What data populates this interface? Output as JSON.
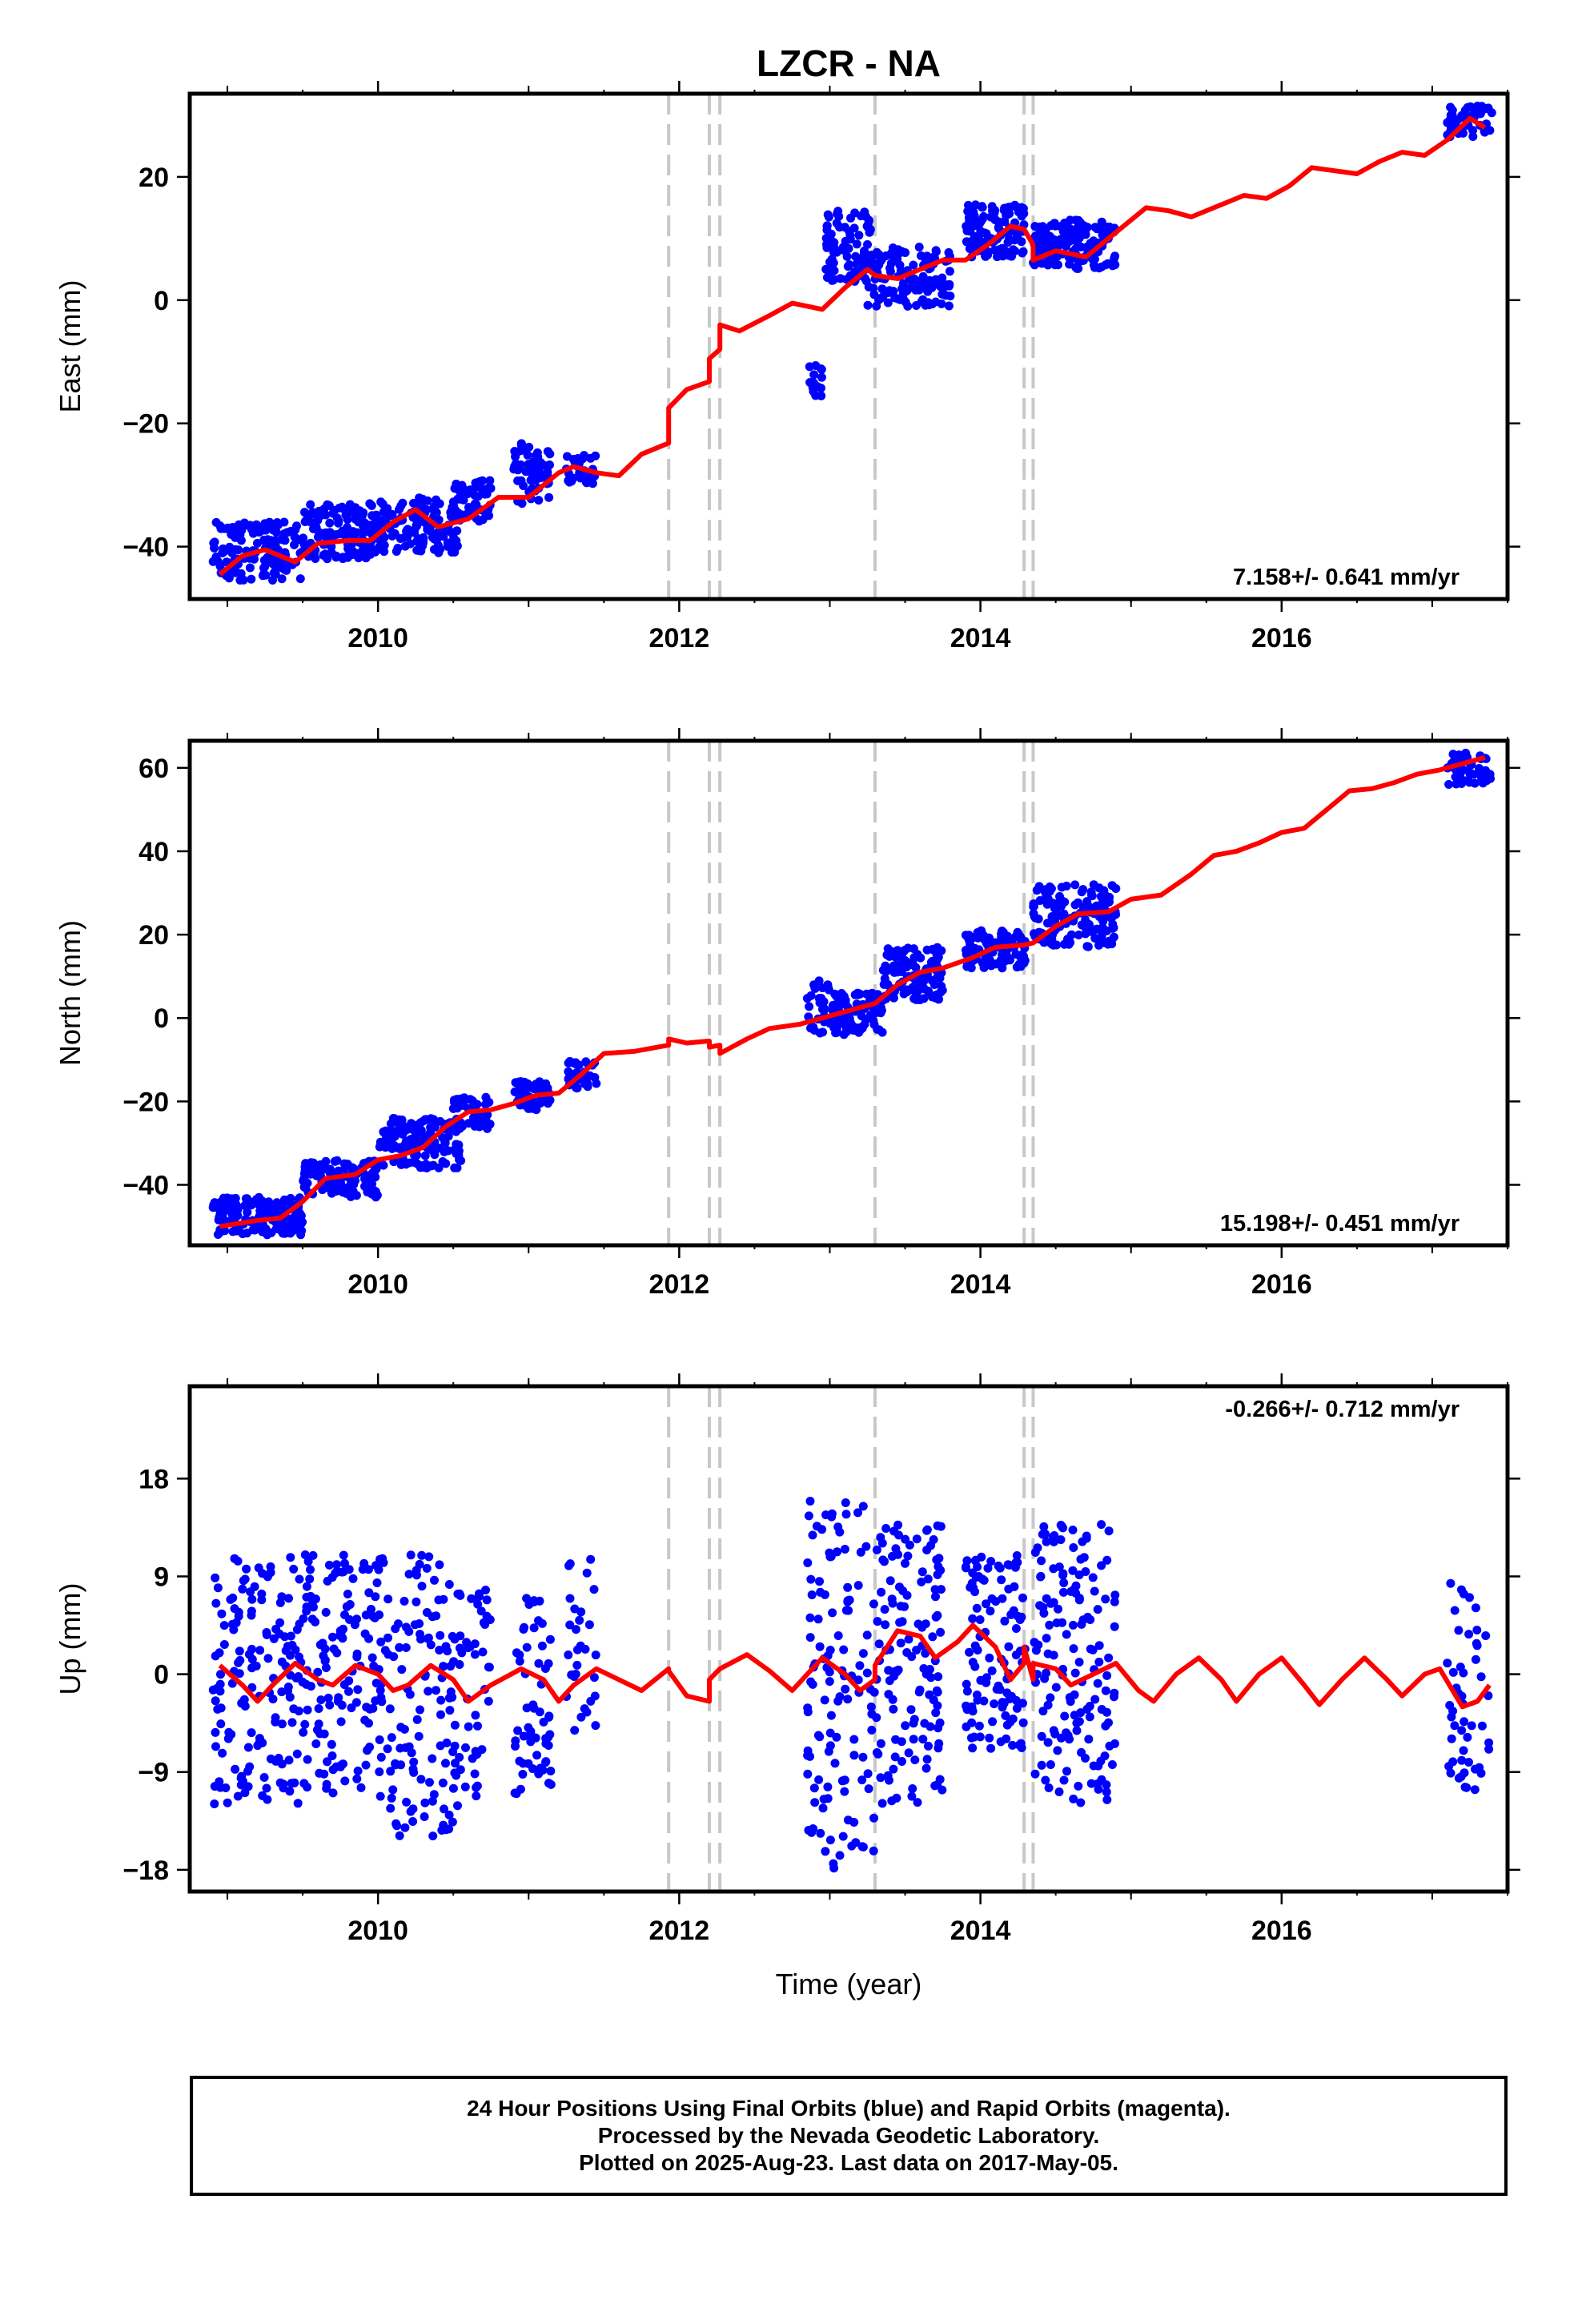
{
  "title": "LZCR - NA",
  "xlabel": "Time (year)",
  "footer": {
    "line1": "24 Hour Positions Using Final Orbits (blue) and Rapid Orbits (magenta).",
    "line2": "Processed by the Nevada Geodetic Laboratory.",
    "line3": "Plotted on 2025-Aug-23. Last data on 2017-May-05."
  },
  "colors": {
    "data": "#0000ff",
    "model": "#ff0000",
    "event": "#c8c8c8",
    "frame": "#000000"
  },
  "chart_data": [
    {
      "type": "scatter",
      "name": "east",
      "ylabel": "East (mm)",
      "rate": "7.158+/- 0.641 mm/yr",
      "xlim": [
        2008.75,
        2017.5
      ],
      "ylim": [
        -48.5,
        33.5
      ],
      "xticks": [
        2010,
        2012,
        2014,
        2016
      ],
      "yticks": [
        -40,
        -20,
        0,
        20
      ],
      "event_lines": [
        2011.93,
        2012.2,
        2012.27,
        2013.3,
        2014.29,
        2014.35
      ],
      "model": [
        [
          2008.95,
          -44.5
        ],
        [
          2009.1,
          -41.5
        ],
        [
          2009.25,
          -40.5
        ],
        [
          2009.45,
          -42.5
        ],
        [
          2009.6,
          -39.5
        ],
        [
          2009.8,
          -39
        ],
        [
          2009.95,
          -39
        ],
        [
          2010.1,
          -36
        ],
        [
          2010.25,
          -34
        ],
        [
          2010.4,
          -36.8
        ],
        [
          2010.6,
          -35.5
        ],
        [
          2010.8,
          -32
        ],
        [
          2011.0,
          -32
        ],
        [
          2011.2,
          -28
        ],
        [
          2011.3,
          -27
        ],
        [
          2011.45,
          -28
        ],
        [
          2011.6,
          -28.5
        ],
        [
          2011.75,
          -25
        ],
        [
          2011.93,
          -23.2
        ],
        [
          2011.93,
          -17.5
        ],
        [
          2012.05,
          -14.5
        ],
        [
          2012.2,
          -13.2
        ],
        [
          2012.2,
          -9.5
        ],
        [
          2012.27,
          -8
        ],
        [
          2012.27,
          -4
        ],
        [
          2012.4,
          -5
        ],
        [
          2012.6,
          -2.5
        ],
        [
          2012.75,
          -0.5
        ],
        [
          2012.95,
          -1.5
        ],
        [
          2013.1,
          2
        ],
        [
          2013.25,
          5
        ],
        [
          2013.3,
          4
        ],
        [
          2013.45,
          3.5
        ],
        [
          2013.6,
          5
        ],
        [
          2013.75,
          6.5
        ],
        [
          2013.9,
          6.5
        ],
        [
          2014.05,
          9
        ],
        [
          2014.2,
          12
        ],
        [
          2014.29,
          11.5
        ],
        [
          2014.35,
          9
        ],
        [
          2014.35,
          6.5
        ],
        [
          2014.5,
          8
        ],
        [
          2014.7,
          7
        ],
        [
          2014.85,
          10
        ],
        [
          2014.95,
          12
        ],
        [
          2015.1,
          15
        ],
        [
          2015.25,
          14.5
        ],
        [
          2015.4,
          13.5
        ],
        [
          2015.6,
          15.5
        ],
        [
          2015.75,
          17
        ],
        [
          2015.9,
          16.5
        ],
        [
          2016.05,
          18.5
        ],
        [
          2016.2,
          21.5
        ],
        [
          2016.35,
          21
        ],
        [
          2016.5,
          20.5
        ],
        [
          2016.65,
          22.5
        ],
        [
          2016.8,
          24
        ],
        [
          2016.95,
          23.5
        ],
        [
          2017.1,
          26
        ],
        [
          2017.25,
          29.5
        ],
        [
          2017.35,
          28
        ]
      ],
      "clusters": [
        {
          "x0": 2008.9,
          "x1": 2009.5,
          "y0": -45.5,
          "y1": -36,
          "n": 150
        },
        {
          "x0": 2009.5,
          "x1": 2010.0,
          "y0": -42,
          "y1": -33,
          "n": 130
        },
        {
          "x0": 2010.0,
          "x1": 2010.55,
          "y0": -41,
          "y1": -32,
          "n": 130
        },
        {
          "x0": 2010.5,
          "x1": 2010.75,
          "y0": -36,
          "y1": -29,
          "n": 50
        },
        {
          "x0": 2010.9,
          "x1": 2011.15,
          "y0": -33,
          "y1": -23,
          "n": 60
        },
        {
          "x0": 2011.25,
          "x1": 2011.45,
          "y0": -30,
          "y1": -25,
          "n": 30
        },
        {
          "x0": 2012.85,
          "x1": 2012.95,
          "y0": -16,
          "y1": -10,
          "n": 15
        },
        {
          "x0": 2012.97,
          "x1": 2013.28,
          "y0": 3,
          "y1": 14.5,
          "n": 90
        },
        {
          "x0": 2013.25,
          "x1": 2013.8,
          "y0": -1,
          "y1": 9,
          "n": 130
        },
        {
          "x0": 2013.9,
          "x1": 2014.3,
          "y0": 7,
          "y1": 15.5,
          "n": 110
        },
        {
          "x0": 2014.35,
          "x1": 2014.9,
          "y0": 5,
          "y1": 13,
          "n": 150
        },
        {
          "x0": 2017.1,
          "x1": 2017.4,
          "y0": 26.5,
          "y1": 31.5,
          "n": 50
        }
      ]
    },
    {
      "type": "scatter",
      "name": "north",
      "ylabel": "North (mm)",
      "rate": "15.198+/- 0.451 mm/yr",
      "xlim": [
        2008.75,
        2017.5
      ],
      "ylim": [
        -54.5,
        66.5
      ],
      "xticks": [
        2010,
        2012,
        2014,
        2016
      ],
      "yticks": [
        -40,
        -20,
        0,
        20,
        40,
        60
      ],
      "event_lines": [
        2011.93,
        2012.2,
        2012.27,
        2013.3,
        2014.29,
        2014.35
      ],
      "model": [
        [
          2008.95,
          -50
        ],
        [
          2009.2,
          -48.5
        ],
        [
          2009.35,
          -48
        ],
        [
          2009.5,
          -44
        ],
        [
          2009.65,
          -38.5
        ],
        [
          2009.85,
          -37.5
        ],
        [
          2010.0,
          -34
        ],
        [
          2010.15,
          -33
        ],
        [
          2010.3,
          -31
        ],
        [
          2010.45,
          -26
        ],
        [
          2010.6,
          -22.5
        ],
        [
          2010.75,
          -22
        ],
        [
          2010.9,
          -20.5
        ],
        [
          2011.05,
          -18.5
        ],
        [
          2011.2,
          -18
        ],
        [
          2011.35,
          -13.5
        ],
        [
          2011.5,
          -8.5
        ],
        [
          2011.7,
          -8
        ],
        [
          2011.93,
          -6.5
        ],
        [
          2011.93,
          -5
        ],
        [
          2012.05,
          -6
        ],
        [
          2012.2,
          -5.5
        ],
        [
          2012.2,
          -7
        ],
        [
          2012.27,
          -6.5
        ],
        [
          2012.27,
          -8.5
        ],
        [
          2012.45,
          -5
        ],
        [
          2012.6,
          -2.5
        ],
        [
          2012.8,
          -1.5
        ],
        [
          2012.95,
          0
        ],
        [
          2013.1,
          1.5
        ],
        [
          2013.3,
          3.5
        ],
        [
          2013.45,
          8
        ],
        [
          2013.6,
          11
        ],
        [
          2013.75,
          12
        ],
        [
          2013.95,
          14.5
        ],
        [
          2014.1,
          17
        ],
        [
          2014.29,
          17.5
        ],
        [
          2014.35,
          18
        ],
        [
          2014.5,
          22
        ],
        [
          2014.65,
          25
        ],
        [
          2014.85,
          25.5
        ],
        [
          2015.0,
          28.5
        ],
        [
          2015.2,
          29.5
        ],
        [
          2015.4,
          34.5
        ],
        [
          2015.55,
          39
        ],
        [
          2015.7,
          40
        ],
        [
          2015.85,
          42
        ],
        [
          2016.0,
          44.5
        ],
        [
          2016.15,
          45.5
        ],
        [
          2016.3,
          50
        ],
        [
          2016.45,
          54.5
        ],
        [
          2016.6,
          55
        ],
        [
          2016.75,
          56.5
        ],
        [
          2016.9,
          58.5
        ],
        [
          2017.05,
          59.5
        ],
        [
          2017.2,
          61
        ],
        [
          2017.35,
          62.5
        ]
      ],
      "clusters": [
        {
          "x0": 2008.9,
          "x1": 2009.5,
          "y0": -52,
          "y1": -43,
          "n": 150
        },
        {
          "x0": 2009.5,
          "x1": 2010.0,
          "y0": -43,
          "y1": -34,
          "n": 130
        },
        {
          "x0": 2010.0,
          "x1": 2010.55,
          "y0": -36,
          "y1": -24,
          "n": 130
        },
        {
          "x0": 2010.5,
          "x1": 2010.75,
          "y0": -27,
          "y1": -19,
          "n": 50
        },
        {
          "x0": 2010.9,
          "x1": 2011.15,
          "y0": -22,
          "y1": -15,
          "n": 60
        },
        {
          "x0": 2011.25,
          "x1": 2011.45,
          "y0": -17,
          "y1": -10,
          "n": 30
        },
        {
          "x0": 2012.85,
          "x1": 2013.0,
          "y0": -4,
          "y1": 9,
          "n": 30
        },
        {
          "x0": 2013.0,
          "x1": 2013.35,
          "y0": -4,
          "y1": 6,
          "n": 90
        },
        {
          "x0": 2013.35,
          "x1": 2013.75,
          "y0": 4,
          "y1": 17,
          "n": 110
        },
        {
          "x0": 2013.9,
          "x1": 2014.3,
          "y0": 12,
          "y1": 21,
          "n": 110
        },
        {
          "x0": 2014.35,
          "x1": 2014.9,
          "y0": 17,
          "y1": 32,
          "n": 150
        },
        {
          "x0": 2017.1,
          "x1": 2017.4,
          "y0": 56,
          "y1": 64,
          "n": 50
        }
      ]
    },
    {
      "type": "scatter",
      "name": "up",
      "ylabel": "Up (mm)",
      "rate": "-0.266+/- 0.712 mm/yr",
      "xlim": [
        2008.75,
        2017.5
      ],
      "ylim": [
        -20,
        26.5
      ],
      "xticks": [
        2010,
        2012,
        2014,
        2016
      ],
      "yticks": [
        -18,
        -9,
        0,
        9,
        18
      ],
      "event_lines": [
        2011.93,
        2012.2,
        2012.27,
        2013.3,
        2014.29,
        2014.35
      ],
      "model": [
        [
          2008.95,
          0.8
        ],
        [
          2009.1,
          -1
        ],
        [
          2009.2,
          -2.5
        ],
        [
          2009.3,
          -1
        ],
        [
          2009.45,
          1
        ],
        [
          2009.6,
          -0.5
        ],
        [
          2009.7,
          -1
        ],
        [
          2009.85,
          0.8
        ],
        [
          2010.0,
          0
        ],
        [
          2010.1,
          -1.5
        ],
        [
          2010.2,
          -1
        ],
        [
          2010.35,
          0.8
        ],
        [
          2010.5,
          -0.5
        ],
        [
          2010.6,
          -2.5
        ],
        [
          2010.75,
          -1
        ],
        [
          2010.95,
          0.5
        ],
        [
          2011.1,
          -0.5
        ],
        [
          2011.2,
          -2.5
        ],
        [
          2011.3,
          -1
        ],
        [
          2011.45,
          0.5
        ],
        [
          2011.6,
          -0.5
        ],
        [
          2011.75,
          -1.5
        ],
        [
          2011.93,
          0.5
        ],
        [
          2011.93,
          0.3
        ],
        [
          2012.05,
          -2
        ],
        [
          2012.2,
          -2.5
        ],
        [
          2012.2,
          -0.5
        ],
        [
          2012.27,
          0.5
        ],
        [
          2012.27,
          0.5
        ],
        [
          2012.45,
          1.8
        ],
        [
          2012.6,
          0.3
        ],
        [
          2012.75,
          -1.5
        ],
        [
          2012.95,
          1.5
        ],
        [
          2013.1,
          0
        ],
        [
          2013.2,
          -1.5
        ],
        [
          2013.3,
          -0.5
        ],
        [
          2013.3,
          0.8
        ],
        [
          2013.45,
          4
        ],
        [
          2013.6,
          3.5
        ],
        [
          2013.7,
          1.5
        ],
        [
          2013.85,
          3
        ],
        [
          2013.95,
          4.5
        ],
        [
          2014.1,
          2.5
        ],
        [
          2014.2,
          -0.5
        ],
        [
          2014.29,
          1
        ],
        [
          2014.29,
          2.5
        ],
        [
          2014.35,
          -0.5
        ],
        [
          2014.35,
          1
        ],
        [
          2014.5,
          0.5
        ],
        [
          2014.6,
          -1
        ],
        [
          2014.75,
          0
        ],
        [
          2014.9,
          1
        ],
        [
          2015.05,
          -1.5
        ],
        [
          2015.15,
          -2.5
        ],
        [
          2015.3,
          0
        ],
        [
          2015.45,
          1.5
        ],
        [
          2015.6,
          -0.5
        ],
        [
          2015.7,
          -2.5
        ],
        [
          2015.85,
          0
        ],
        [
          2016.0,
          1.5
        ],
        [
          2016.15,
          -1
        ],
        [
          2016.25,
          -2.8
        ],
        [
          2016.4,
          -0.5
        ],
        [
          2016.55,
          1.5
        ],
        [
          2016.7,
          -0.5
        ],
        [
          2016.8,
          -2
        ],
        [
          2016.95,
          0
        ],
        [
          2017.05,
          0.5
        ],
        [
          2017.2,
          -3
        ],
        [
          2017.3,
          -2.5
        ],
        [
          2017.38,
          -1
        ]
      ],
      "clusters": [
        {
          "x0": 2008.9,
          "x1": 2009.5,
          "y0": -12,
          "y1": 11,
          "n": 150
        },
        {
          "x0": 2009.5,
          "x1": 2010.0,
          "y0": -11,
          "y1": 11,
          "n": 130
        },
        {
          "x0": 2010.0,
          "x1": 2010.55,
          "y0": -15,
          "y1": 11,
          "n": 130
        },
        {
          "x0": 2010.5,
          "x1": 2010.75,
          "y0": -12,
          "y1": 9,
          "n": 50
        },
        {
          "x0": 2010.9,
          "x1": 2011.15,
          "y0": -11,
          "y1": 7,
          "n": 60
        },
        {
          "x0": 2011.25,
          "x1": 2011.45,
          "y0": -6,
          "y1": 11,
          "n": 30
        },
        {
          "x0": 2012.85,
          "x1": 2013.3,
          "y0": -18,
          "y1": 16,
          "n": 120
        },
        {
          "x0": 2013.3,
          "x1": 2013.75,
          "y0": -12,
          "y1": 14,
          "n": 130
        },
        {
          "x0": 2013.9,
          "x1": 2014.3,
          "y0": -7,
          "y1": 11,
          "n": 110
        },
        {
          "x0": 2014.35,
          "x1": 2014.9,
          "y0": -12,
          "y1": 14,
          "n": 150
        },
        {
          "x0": 2017.1,
          "x1": 2017.4,
          "y0": -11,
          "y1": 9,
          "n": 50
        }
      ]
    }
  ]
}
